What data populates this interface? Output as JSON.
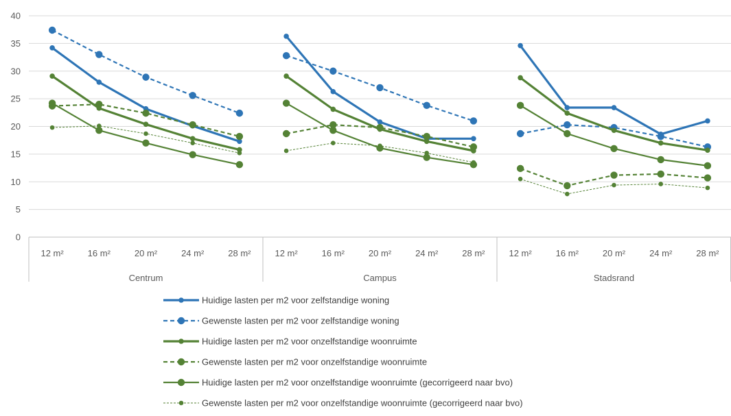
{
  "chart_data": {
    "type": "line",
    "ylim": [
      0,
      40
    ],
    "yticks": [
      0,
      5,
      10,
      15,
      20,
      25,
      30,
      35,
      40
    ],
    "grid": "horizontal",
    "groups": [
      "Centrum",
      "Campus",
      "Stadsrand"
    ],
    "categories": [
      "12 m²",
      "16 m²",
      "20 m²",
      "24 m²",
      "28 m²"
    ],
    "legend_position": "bottom",
    "colors": {
      "blue": "#2e75b6",
      "green": "#548235",
      "grid": "#d9d9d9",
      "axis": "#bfbfbf",
      "text": "#595959"
    },
    "series": [
      {
        "name": "Huidige lasten per m2 voor zelfstandige woning",
        "color": "#2e75b6",
        "dash": "solid",
        "weight": "thick",
        "marker": "small",
        "values": [
          [
            34.2,
            28.0,
            23.2,
            20.1,
            17.3
          ],
          [
            36.3,
            26.3,
            20.8,
            17.8,
            17.8
          ],
          [
            34.6,
            23.4,
            23.4,
            18.6,
            21.0
          ]
        ]
      },
      {
        "name": "Gewenste lasten per m2 voor zelfstandige woning",
        "color": "#2e75b6",
        "dash": "dashed",
        "weight": "medium",
        "marker": "large",
        "values": [
          [
            37.4,
            33.0,
            28.9,
            25.6,
            22.4
          ],
          [
            32.8,
            30.0,
            27.0,
            23.8,
            21.0
          ],
          [
            18.7,
            20.3,
            19.8,
            18.2,
            16.3
          ]
        ]
      },
      {
        "name": "Huidige lasten per m2 voor onzelfstandige woonruimte",
        "color": "#548235",
        "dash": "solid",
        "weight": "thick",
        "marker": "small",
        "values": [
          [
            29.1,
            23.3,
            20.4,
            17.8,
            15.8
          ],
          [
            29.1,
            23.1,
            19.5,
            17.3,
            15.6
          ],
          [
            28.8,
            22.4,
            19.3,
            17.0,
            15.7
          ]
        ]
      },
      {
        "name": "Gewenste lasten per m2 voor onzelfstandige woonruimte",
        "color": "#548235",
        "dash": "dashed",
        "weight": "medium",
        "marker": "large",
        "values": [
          [
            23.7,
            24.0,
            22.4,
            20.3,
            18.2
          ],
          [
            18.7,
            20.3,
            19.8,
            18.2,
            16.3
          ],
          [
            12.4,
            9.3,
            11.2,
            11.4,
            10.7
          ]
        ]
      },
      {
        "name": "Huidige lasten per m2 voor onzelfstandige woonruimte (gecorrigeerd naar bvo)",
        "color": "#548235",
        "dash": "solid",
        "weight": "medium",
        "marker": "large",
        "values": [
          [
            24.2,
            19.3,
            17.0,
            14.9,
            13.1
          ],
          [
            24.2,
            19.3,
            16.1,
            14.4,
            13.1
          ],
          [
            23.8,
            18.7,
            16.0,
            14.0,
            12.9
          ]
        ]
      },
      {
        "name": "Gewenste lasten per m2 voor onzelfstandige woonruimte (gecorrigeerd naar bvo)",
        "color": "#548235",
        "dash": "dotted",
        "weight": "thin",
        "marker": "small",
        "values": [
          [
            19.8,
            20.1,
            18.7,
            17.0,
            15.2
          ],
          [
            15.6,
            17.0,
            16.5,
            15.2,
            13.5
          ],
          [
            10.5,
            7.8,
            9.4,
            9.6,
            8.9
          ]
        ]
      }
    ]
  }
}
